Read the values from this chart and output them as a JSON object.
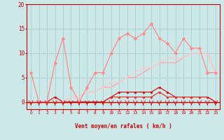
{
  "xlabel": "Vent moyen/en rafales ( km/h )",
  "background_color": "#cce8e8",
  "grid_color": "#aacccc",
  "x_ticks": [
    0,
    1,
    2,
    3,
    4,
    5,
    6,
    7,
    8,
    9,
    10,
    11,
    12,
    13,
    14,
    15,
    16,
    17,
    18,
    19,
    20,
    21,
    22,
    23
  ],
  "ylim": [
    -1.5,
    20
  ],
  "yticks": [
    0,
    5,
    10,
    15,
    20
  ],
  "series": [
    {
      "name": "rafales_dark_red",
      "color": "#dd0000",
      "lw": 0.8,
      "marker": "s",
      "markersize": 1.8,
      "y": [
        0,
        0,
        0,
        1,
        0,
        0,
        0,
        0,
        0,
        0,
        1,
        2,
        2,
        2,
        2,
        2,
        3,
        2,
        1,
        1,
        1,
        1,
        1,
        0
      ]
    },
    {
      "name": "vent_moyen_red",
      "color": "#ee2222",
      "lw": 0.8,
      "marker": "s",
      "markersize": 1.8,
      "y": [
        0,
        0,
        0,
        0,
        0,
        0,
        0,
        0,
        0,
        0,
        1,
        1,
        1,
        1,
        1,
        1,
        2,
        1,
        1,
        1,
        1,
        1,
        1,
        0
      ]
    },
    {
      "name": "linear_light1",
      "color": "#ffaaaa",
      "lw": 1.0,
      "marker": null,
      "markersize": 0,
      "y": [
        0,
        0,
        0,
        0,
        0,
        1,
        1,
        2,
        2,
        3,
        3,
        4,
        5,
        5,
        6,
        7,
        8,
        8,
        8,
        9,
        10,
        10,
        10,
        6
      ]
    },
    {
      "name": "linear_light2",
      "color": "#ffcccc",
      "lw": 1.0,
      "marker": null,
      "markersize": 0,
      "y": [
        0,
        0,
        0,
        0,
        0,
        1,
        1,
        2,
        2,
        3,
        4,
        4,
        5,
        6,
        7,
        7,
        8,
        9,
        9,
        9,
        10,
        10,
        10,
        6
      ]
    },
    {
      "name": "peak_pink",
      "color": "#ff8888",
      "lw": 0.9,
      "marker": "D",
      "markersize": 2.2,
      "y": [
        6,
        0,
        0,
        8,
        13,
        3,
        0,
        3,
        6,
        6,
        10,
        13,
        14,
        13,
        14,
        16,
        13,
        12,
        10,
        13,
        11,
        11,
        6,
        6
      ]
    }
  ],
  "arrow_color": "#cc2222",
  "axis_color": "#cc0000",
  "tick_color": "#cc0000",
  "hline_color": "#cc0000",
  "hline_y": 0
}
